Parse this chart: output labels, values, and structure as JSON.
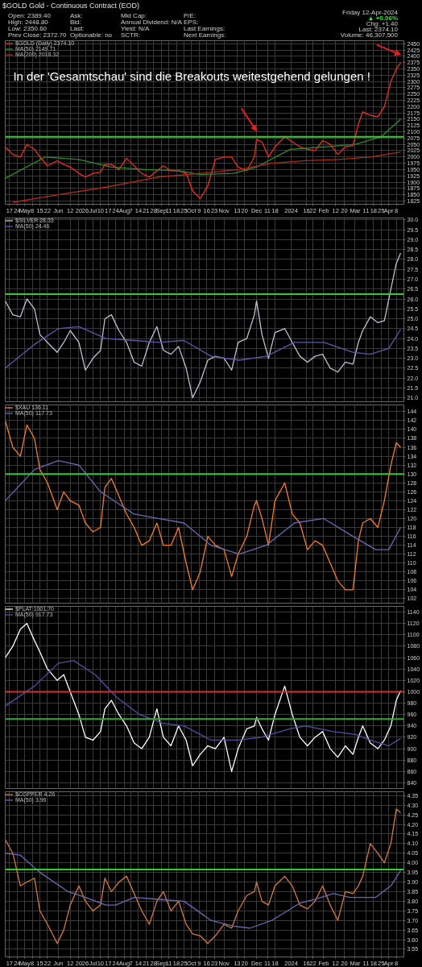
{
  "chart_data": [
    {
      "type": "line",
      "title": "$GOLD Gold - Continuous Contract (EOD)",
      "subtitle": "In der 'Gesamtschau' sind die Breakouts weitestgehend gelungen !",
      "annotations": [
        "Open: 2389.40",
        "High: 2448.80",
        "Low: 2350.60",
        "Prev Close: 2372.70",
        "Ask:",
        "Bid:",
        "Last:",
        "Optionable: no",
        "Mkt Cap:",
        "Annual Dividend: N/A",
        "Yield: N/A",
        "SCTR:",
        "P/E:",
        "EPS:",
        "Last Earnings:",
        "Next Earnings:",
        "Friday 12-Apr-2024",
        "▲ +0.06%",
        "Chg: +1.40",
        "Last: 2374.10",
        "Volume: 46,307,500"
      ],
      "x": [
        "2023-04-13",
        "2023-04-20",
        "2023-04-27",
        "2023-05-03",
        "2023-05-10",
        "2023-05-15",
        "2023-05-22",
        "2023-05-31",
        "2023-06-06",
        "2023-06-12",
        "2023-06-20",
        "2023-06-26",
        "2023-07-03",
        "2023-07-10",
        "2023-07-14",
        "2023-07-20",
        "2023-07-27",
        "2023-08-03",
        "2023-08-10",
        "2023-08-17",
        "2023-08-24",
        "2023-08-31",
        "2023-09-06",
        "2023-09-13",
        "2023-09-20",
        "2023-09-27",
        "2023-10-03",
        "2023-10-10",
        "2023-10-17",
        "2023-10-24",
        "2023-11-01",
        "2023-11-08",
        "2023-11-14",
        "2023-11-22",
        "2023-11-29",
        "2023-12-01",
        "2023-12-06",
        "2023-12-12",
        "2023-12-18",
        "2023-12-27",
        "2024-01-03",
        "2024-01-10",
        "2024-01-17",
        "2024-01-24",
        "2024-01-31",
        "2024-02-07",
        "2024-02-14",
        "2024-02-21",
        "2024-02-28",
        "2024-03-04",
        "2024-03-08",
        "2024-03-15",
        "2024-03-22",
        "2024-03-28",
        "2024-04-03",
        "2024-04-08",
        "2024-04-12"
      ],
      "series": [
        {
          "name": "$GOLD (Daily) 2374.10",
          "color": "#e8321e",
          "values": [
            2040,
            2010,
            2000,
            2050,
            2030,
            2000,
            1965,
            1985,
            1970,
            1960,
            1935,
            1920,
            1935,
            1940,
            1970,
            1970,
            1950,
            1995,
            1965,
            1935,
            1920,
            1945,
            1965,
            1945,
            1945,
            1935,
            1865,
            1835,
            1885,
            1990,
            2000,
            2000,
            1960,
            1945,
            2000,
            2070,
            2060,
            2000,
            2040,
            2080,
            2060,
            2040,
            2030,
            2025,
            2065,
            2050,
            2010,
            2040,
            2045,
            2130,
            2180,
            2165,
            2160,
            2200,
            2300,
            2350,
            2374
          ]
        },
        {
          "name": "MA(50) 2149.71",
          "color": "#2e8b2e",
          "x": [
            "2023-04-13",
            "2023-05-20",
            "2023-06-20",
            "2023-07-20",
            "2023-08-20",
            "2023-09-20",
            "2023-10-10",
            "2023-11-10",
            "2023-12-01",
            "2024-01-01",
            "2024-02-01",
            "2024-03-01",
            "2024-03-25",
            "2024-04-12"
          ],
          "values": [
            1915,
            2000,
            1990,
            1960,
            1950,
            1945,
            1930,
            1935,
            1960,
            2030,
            2040,
            2050,
            2080,
            2150
          ]
        },
        {
          "name": "MA(200) 2018.32",
          "color": "#b02a1a",
          "x": [
            "2023-04-20",
            "2023-06-01",
            "2023-07-15",
            "2023-09-01",
            "2023-10-10",
            "2023-11-15",
            "2023-12-15",
            "2024-01-15",
            "2024-02-15",
            "2024-03-15",
            "2024-04-12"
          ],
          "values": [
            1820,
            1850,
            1880,
            1920,
            1935,
            1950,
            1975,
            1985,
            1990,
            2000,
            2020
          ]
        }
      ],
      "xlim": [
        "2023-04-13",
        "2024-04-15"
      ],
      "xticks": [
        {
          "value": "2023-04-17",
          "label": "17"
        },
        {
          "value": "2023-04-24",
          "label": "24"
        },
        {
          "value": "2023-05-01",
          "label": "May"
        },
        {
          "value": "2023-05-08",
          "label": "8"
        },
        {
          "value": "2023-05-15",
          "label": "15"
        },
        {
          "value": "2023-05-22",
          "label": "22"
        },
        {
          "value": "2023-06-01",
          "label": "Jun"
        },
        {
          "value": "2023-06-12",
          "label": "12"
        },
        {
          "value": "2023-06-20",
          "label": "20"
        },
        {
          "value": "2023-06-26",
          "label": "26"
        },
        {
          "value": "2023-07-03",
          "label": "Jul"
        },
        {
          "value": "2023-07-10",
          "label": "10"
        },
        {
          "value": "2023-07-17",
          "label": "17"
        },
        {
          "value": "2023-07-24",
          "label": "24"
        },
        {
          "value": "2023-08-01",
          "label": "Aug"
        },
        {
          "value": "2023-08-07",
          "label": "7"
        },
        {
          "value": "2023-08-14",
          "label": "14"
        },
        {
          "value": "2023-08-21",
          "label": "21"
        },
        {
          "value": "2023-08-28",
          "label": "28"
        },
        {
          "value": "2023-09-04",
          "label": "Sep"
        },
        {
          "value": "2023-09-11",
          "label": "11"
        },
        {
          "value": "2023-09-18",
          "label": "18"
        },
        {
          "value": "2023-09-25",
          "label": "25"
        },
        {
          "value": "2023-10-02",
          "label": "Oct"
        },
        {
          "value": "2023-10-09",
          "label": "9"
        },
        {
          "value": "2023-10-16",
          "label": "16"
        },
        {
          "value": "2023-10-23",
          "label": "23"
        },
        {
          "value": "2023-11-01",
          "label": "Nov"
        },
        {
          "value": "2023-11-13",
          "label": "13"
        },
        {
          "value": "2023-11-20",
          "label": "20"
        },
        {
          "value": "2023-12-01",
          "label": "Dec"
        },
        {
          "value": "2023-12-11",
          "label": "11"
        },
        {
          "value": "2023-12-18",
          "label": "18"
        },
        {
          "value": "2024-01-02",
          "label": "2024"
        },
        {
          "value": "2024-01-16",
          "label": "16"
        },
        {
          "value": "2024-01-22",
          "label": "22"
        },
        {
          "value": "2024-02-01",
          "label": "Feb"
        },
        {
          "value": "2024-02-12",
          "label": "12"
        },
        {
          "value": "2024-02-20",
          "label": "20"
        },
        {
          "value": "2024-03-01",
          "label": "Mar"
        },
        {
          "value": "2024-03-11",
          "label": "11"
        },
        {
          "value": "2024-03-18",
          "label": "18"
        },
        {
          "value": "2024-03-25",
          "label": "25"
        },
        {
          "value": "2024-04-01",
          "label": "Apr"
        },
        {
          "value": "2024-04-08",
          "label": "8"
        }
      ],
      "ylim": [
        1812,
        2462
      ],
      "yticks": [
        1825,
        1850,
        1875,
        1900,
        1925,
        1950,
        1975,
        2000,
        2025,
        2050,
        2075,
        2100,
        2125,
        2150,
        2175,
        2200,
        2225,
        2250,
        2275,
        2300,
        2325,
        2350,
        2375,
        2400,
        2425,
        2450
      ],
      "ref_lines": [
        {
          "axis": "y",
          "value": 2080,
          "color": "#33cc33"
        }
      ],
      "grid": true,
      "legend": "top left"
    },
    {
      "type": "line",
      "x": [
        "2023-04-13",
        "2023-04-20",
        "2023-04-27",
        "2023-05-03",
        "2023-05-10",
        "2023-05-15",
        "2023-05-22",
        "2023-05-31",
        "2023-06-06",
        "2023-06-12",
        "2023-06-20",
        "2023-06-26",
        "2023-07-03",
        "2023-07-10",
        "2023-07-14",
        "2023-07-20",
        "2023-07-27",
        "2023-08-03",
        "2023-08-10",
        "2023-08-17",
        "2023-08-24",
        "2023-08-31",
        "2023-09-06",
        "2023-09-13",
        "2023-09-20",
        "2023-09-27",
        "2023-10-03",
        "2023-10-10",
        "2023-10-17",
        "2023-10-24",
        "2023-11-01",
        "2023-11-08",
        "2023-11-14",
        "2023-11-22",
        "2023-11-29",
        "2023-12-01",
        "2023-12-06",
        "2023-12-12",
        "2023-12-18",
        "2023-12-27",
        "2024-01-03",
        "2024-01-10",
        "2024-01-17",
        "2024-01-24",
        "2024-01-31",
        "2024-02-07",
        "2024-02-14",
        "2024-02-21",
        "2024-02-28",
        "2024-03-04",
        "2024-03-08",
        "2024-03-15",
        "2024-03-22",
        "2024-03-28",
        "2024-04-03",
        "2024-04-08",
        "2024-04-12"
      ],
      "series": [
        {
          "name": "$SILVER 28.33",
          "color": "#b8c4d0",
          "values": [
            25.9,
            25.2,
            25.1,
            26.0,
            25.5,
            24.2,
            23.8,
            23.3,
            23.8,
            24.4,
            23.8,
            22.4,
            23.0,
            23.4,
            25.0,
            25.2,
            24.4,
            23.8,
            22.8,
            22.6,
            23.8,
            24.6,
            23.4,
            23.2,
            23.6,
            22.5,
            21.0,
            21.8,
            22.9,
            23.1,
            23.0,
            22.4,
            23.8,
            24.0,
            25.2,
            25.9,
            24.2,
            23.0,
            24.3,
            24.5,
            23.8,
            23.1,
            22.8,
            23.1,
            23.2,
            22.5,
            22.3,
            22.8,
            22.7,
            23.8,
            24.4,
            25.1,
            24.8,
            24.9,
            26.5,
            27.8,
            28.33
          ]
        },
        {
          "name": "MA(50) 24.46",
          "color": "#5a5aa8",
          "x": [
            "2023-04-13",
            "2023-05-10",
            "2023-06-01",
            "2023-06-20",
            "2023-07-15",
            "2023-08-10",
            "2023-09-01",
            "2023-09-25",
            "2023-10-20",
            "2023-11-15",
            "2023-12-10",
            "2024-01-05",
            "2024-02-01",
            "2024-02-28",
            "2024-03-15",
            "2024-04-01",
            "2024-04-12"
          ],
          "values": [
            22.5,
            23.7,
            24.5,
            24.6,
            24.0,
            23.9,
            23.8,
            23.9,
            23.1,
            22.9,
            23.1,
            23.8,
            23.8,
            23.3,
            23.2,
            23.5,
            24.46
          ]
        }
      ],
      "xlim": [
        "2023-04-13",
        "2024-04-15"
      ],
      "ylim": [
        20.8,
        30.1
      ],
      "yticks": [
        {
          "value": 21,
          "label": "21.0"
        },
        {
          "value": 21.5,
          "label": "21.5"
        },
        {
          "value": 22,
          "label": "22.0"
        },
        {
          "value": 22.5,
          "label": "22.5"
        },
        {
          "value": 23,
          "label": "23.0"
        },
        {
          "value": 23.5,
          "label": "23.5"
        },
        {
          "value": 24,
          "label": "24.0"
        },
        {
          "value": 24.5,
          "label": "24.5"
        },
        {
          "value": 25,
          "label": "25.0"
        },
        {
          "value": 25.5,
          "label": "25.5"
        },
        {
          "value": 26,
          "label": "26.0"
        },
        {
          "value": 26.5,
          "label": "26.5"
        },
        {
          "value": 27,
          "label": "27.0"
        },
        {
          "value": 27.5,
          "label": "27.5"
        },
        {
          "value": 28,
          "label": "28.0"
        },
        {
          "value": 28.5,
          "label": "28.5"
        },
        {
          "value": 29,
          "label": "29.0"
        },
        {
          "value": 29.5,
          "label": "29.5"
        },
        {
          "value": 30,
          "label": "30.0"
        }
      ],
      "ref_lines": [
        {
          "axis": "y",
          "value": 26.25,
          "color": "#33cc33"
        }
      ],
      "grid": true,
      "legend": "top left",
      "tick_labels": "y"
    },
    {
      "type": "line",
      "x": [
        "2023-04-13",
        "2023-04-20",
        "2023-04-27",
        "2023-05-03",
        "2023-05-10",
        "2023-05-15",
        "2023-05-22",
        "2023-05-31",
        "2023-06-06",
        "2023-06-12",
        "2023-06-20",
        "2023-06-26",
        "2023-07-03",
        "2023-07-10",
        "2023-07-14",
        "2023-07-20",
        "2023-07-27",
        "2023-08-03",
        "2023-08-10",
        "2023-08-17",
        "2023-08-24",
        "2023-08-31",
        "2023-09-06",
        "2023-09-13",
        "2023-09-20",
        "2023-09-27",
        "2023-10-03",
        "2023-10-10",
        "2023-10-17",
        "2023-10-24",
        "2023-11-01",
        "2023-11-08",
        "2023-11-14",
        "2023-11-22",
        "2023-11-29",
        "2023-12-01",
        "2023-12-06",
        "2023-12-12",
        "2023-12-18",
        "2023-12-27",
        "2024-01-03",
        "2024-01-10",
        "2024-01-17",
        "2024-01-24",
        "2024-01-31",
        "2024-02-07",
        "2024-02-14",
        "2024-02-21",
        "2024-02-28",
        "2024-03-04",
        "2024-03-08",
        "2024-03-15",
        "2024-03-22",
        "2024-03-28",
        "2024-04-03",
        "2024-04-08",
        "2024-04-12"
      ],
      "series": [
        {
          "name": "$XAU 136.11",
          "color": "#f07f2a",
          "values": [
            142,
            136,
            134,
            141,
            138,
            131,
            128,
            122,
            126,
            124,
            123,
            119,
            117,
            118,
            127,
            129,
            125,
            121,
            118,
            114,
            115,
            119,
            114,
            114,
            118,
            110,
            104,
            108,
            116,
            114,
            113,
            107,
            112,
            116,
            123,
            124,
            120,
            114,
            124,
            128,
            121,
            119,
            113,
            115,
            114,
            110,
            106,
            104,
            104,
            115,
            119,
            120,
            118,
            124,
            132,
            137,
            136
          ]
        },
        {
          "name": "MA(50) 117.73",
          "color": "#6a6ab0",
          "x": [
            "2023-04-13",
            "2023-05-10",
            "2023-06-01",
            "2023-06-20",
            "2023-07-10",
            "2023-08-10",
            "2023-09-01",
            "2023-09-25",
            "2023-10-20",
            "2023-11-15",
            "2023-12-10",
            "2024-01-05",
            "2024-02-01",
            "2024-02-28",
            "2024-03-20",
            "2024-04-01",
            "2024-04-12"
          ],
          "values": [
            124,
            131,
            133,
            132,
            126,
            121,
            120,
            119,
            114,
            112,
            114,
            119,
            120,
            116,
            113,
            113,
            118
          ]
        }
      ],
      "xlim": [
        "2023-04-13",
        "2024-04-15"
      ],
      "ylim": [
        101,
        145.5
      ],
      "yticks": [
        102,
        104,
        106,
        108,
        110,
        112,
        114,
        116,
        118,
        120,
        122,
        124,
        126,
        128,
        130,
        132,
        134,
        136,
        138,
        140,
        142,
        144
      ],
      "ref_lines": [
        {
          "axis": "y",
          "value": 130,
          "color": "#33cc33"
        }
      ],
      "grid": true,
      "legend": "top left",
      "tick_labels": "y"
    },
    {
      "type": "line",
      "x": [
        "2023-04-13",
        "2023-04-20",
        "2023-04-27",
        "2023-05-03",
        "2023-05-10",
        "2023-05-15",
        "2023-05-22",
        "2023-05-31",
        "2023-06-06",
        "2023-06-12",
        "2023-06-20",
        "2023-06-26",
        "2023-07-03",
        "2023-07-10",
        "2023-07-14",
        "2023-07-20",
        "2023-07-27",
        "2023-08-03",
        "2023-08-10",
        "2023-08-17",
        "2023-08-24",
        "2023-08-31",
        "2023-09-06",
        "2023-09-13",
        "2023-09-20",
        "2023-09-27",
        "2023-10-03",
        "2023-10-10",
        "2023-10-17",
        "2023-10-24",
        "2023-11-01",
        "2023-11-08",
        "2023-11-14",
        "2023-11-22",
        "2023-11-29",
        "2023-12-01",
        "2023-12-06",
        "2023-12-12",
        "2023-12-18",
        "2023-12-27",
        "2024-01-03",
        "2024-01-10",
        "2024-01-17",
        "2024-01-24",
        "2024-01-31",
        "2024-02-07",
        "2024-02-14",
        "2024-02-21",
        "2024-02-28",
        "2024-03-04",
        "2024-03-08",
        "2024-03-15",
        "2024-03-22",
        "2024-03-28",
        "2024-04-03",
        "2024-04-08",
        "2024-04-12"
      ],
      "series": [
        {
          "name": "$PLAT 1001.70",
          "color": "#ffffff",
          "values": [
            1060,
            1080,
            1110,
            1120,
            1090,
            1070,
            1040,
            1020,
            1030,
            1000,
            960,
            920,
            915,
            930,
            970,
            985,
            960,
            940,
            910,
            900,
            920,
            970,
            920,
            905,
            940,
            915,
            870,
            890,
            905,
            900,
            920,
            860,
            900,
            935,
            940,
            955,
            935,
            915,
            960,
            1010,
            960,
            920,
            905,
            920,
            930,
            900,
            885,
            905,
            890,
            920,
            940,
            910,
            900,
            915,
            940,
            985,
            1002
          ]
        },
        {
          "name": "MA(50) 917.73",
          "color": "#5050a0",
          "x": [
            "2023-04-13",
            "2023-05-10",
            "2023-06-01",
            "2023-06-15",
            "2023-07-05",
            "2023-07-25",
            "2023-08-15",
            "2023-09-05",
            "2023-09-25",
            "2023-10-20",
            "2023-11-15",
            "2023-12-05",
            "2024-01-01",
            "2024-01-15",
            "2024-02-10",
            "2024-03-01",
            "2024-03-15",
            "2024-04-01",
            "2024-04-12"
          ],
          "values": [
            975,
            1010,
            1050,
            1055,
            1030,
            990,
            960,
            945,
            940,
            915,
            915,
            920,
            935,
            940,
            930,
            925,
            915,
            905,
            918
          ]
        }
      ],
      "xlim": [
        "2023-04-13",
        "2024-04-15"
      ],
      "ylim": [
        830,
        1150
      ],
      "yticks": [
        840,
        860,
        880,
        900,
        920,
        940,
        960,
        980,
        1000,
        1020,
        1040,
        1060,
        1080,
        1100,
        1120,
        1140
      ],
      "ref_lines": [
        {
          "axis": "y",
          "value": 1000,
          "color": "#cc3333"
        },
        {
          "axis": "y",
          "value": 952,
          "color": "#33aa33"
        }
      ],
      "grid": true,
      "legend": "top left",
      "tick_labels": "y"
    },
    {
      "type": "line",
      "x": [
        "2023-04-13",
        "2023-04-20",
        "2023-04-27",
        "2023-05-03",
        "2023-05-10",
        "2023-05-15",
        "2023-05-22",
        "2023-05-31",
        "2023-06-06",
        "2023-06-12",
        "2023-06-20",
        "2023-06-26",
        "2023-07-03",
        "2023-07-10",
        "2023-07-14",
        "2023-07-20",
        "2023-07-27",
        "2023-08-03",
        "2023-08-10",
        "2023-08-17",
        "2023-08-24",
        "2023-08-31",
        "2023-09-06",
        "2023-09-13",
        "2023-09-20",
        "2023-09-27",
        "2023-10-03",
        "2023-10-10",
        "2023-10-17",
        "2023-10-24",
        "2023-11-01",
        "2023-11-08",
        "2023-11-14",
        "2023-11-22",
        "2023-11-29",
        "2023-12-01",
        "2023-12-06",
        "2023-12-12",
        "2023-12-18",
        "2023-12-27",
        "2024-01-03",
        "2024-01-10",
        "2024-01-17",
        "2024-01-24",
        "2024-01-31",
        "2024-02-07",
        "2024-02-14",
        "2024-02-21",
        "2024-02-28",
        "2024-03-04",
        "2024-03-08",
        "2024-03-15",
        "2024-03-22",
        "2024-03-28",
        "2024-04-03",
        "2024-04-08",
        "2024-04-12"
      ],
      "series": [
        {
          "name": "$COPPER 4.26",
          "color": "#d07a40",
          "values": [
            4.12,
            4.05,
            3.88,
            3.9,
            3.92,
            3.75,
            3.68,
            3.58,
            3.65,
            3.78,
            3.88,
            3.8,
            3.75,
            3.78,
            3.92,
            3.85,
            3.9,
            3.93,
            3.84,
            3.75,
            3.68,
            3.8,
            3.85,
            3.75,
            3.8,
            3.68,
            3.63,
            3.62,
            3.58,
            3.62,
            3.68,
            3.66,
            3.75,
            3.83,
            3.85,
            3.9,
            3.8,
            3.78,
            3.88,
            3.93,
            3.88,
            3.78,
            3.76,
            3.8,
            3.88,
            3.78,
            3.7,
            3.85,
            3.84,
            3.88,
            3.93,
            4.1,
            4.05,
            4.0,
            4.1,
            4.28,
            4.26
          ]
        },
        {
          "name": "MA(50) 3.96",
          "color": "#6a6ab0",
          "x": [
            "2023-04-13",
            "2023-04-27",
            "2023-05-15",
            "2023-06-10",
            "2023-06-26",
            "2023-07-15",
            "2023-07-24",
            "2023-08-10",
            "2023-09-01",
            "2023-09-25",
            "2023-10-20",
            "2023-11-10",
            "2023-11-25",
            "2023-12-15",
            "2024-01-10",
            "2024-01-24",
            "2024-02-10",
            "2024-02-25",
            "2024-03-20",
            "2024-04-03",
            "2024-04-12"
          ],
          "values": [
            4.05,
            4.04,
            3.95,
            3.85,
            3.82,
            3.78,
            3.78,
            3.82,
            3.81,
            3.8,
            3.7,
            3.67,
            3.66,
            3.7,
            3.79,
            3.81,
            3.84,
            3.82,
            3.82,
            3.88,
            3.96
          ]
        }
      ],
      "xlim": [
        "2023-04-13",
        "2024-04-15"
      ],
      "xticks": [
        {
          "value": "2023-04-17",
          "label": "17"
        },
        {
          "value": "2023-04-24",
          "label": "24"
        },
        {
          "value": "2023-05-01",
          "label": "May"
        },
        {
          "value": "2023-05-08",
          "label": "8"
        },
        {
          "value": "2023-05-15",
          "label": "15"
        },
        {
          "value": "2023-05-22",
          "label": "22"
        },
        {
          "value": "2023-06-01",
          "label": "Jun"
        },
        {
          "value": "2023-06-12",
          "label": "12"
        },
        {
          "value": "2023-06-20",
          "label": "20"
        },
        {
          "value": "2023-06-26",
          "label": "26"
        },
        {
          "value": "2023-07-03",
          "label": "Jul"
        },
        {
          "value": "2023-07-10",
          "label": "10"
        },
        {
          "value": "2023-07-17",
          "label": "17"
        },
        {
          "value": "2023-07-24",
          "label": "24"
        },
        {
          "value": "2023-08-01",
          "label": "Aug"
        },
        {
          "value": "2023-08-07",
          "label": "7"
        },
        {
          "value": "2023-08-14",
          "label": "14"
        },
        {
          "value": "2023-08-21",
          "label": "21"
        },
        {
          "value": "2023-08-28",
          "label": "28"
        },
        {
          "value": "2023-09-04",
          "label": "Sep"
        },
        {
          "value": "2023-09-11",
          "label": "11"
        },
        {
          "value": "2023-09-18",
          "label": "18"
        },
        {
          "value": "2023-09-25",
          "label": "25"
        },
        {
          "value": "2023-10-02",
          "label": "Oct"
        },
        {
          "value": "2023-10-09",
          "label": "9"
        },
        {
          "value": "2023-10-16",
          "label": "16"
        },
        {
          "value": "2023-10-23",
          "label": "23"
        },
        {
          "value": "2023-11-01",
          "label": "Nov"
        },
        {
          "value": "2023-11-13",
          "label": "13"
        },
        {
          "value": "2023-11-20",
          "label": "20"
        },
        {
          "value": "2023-12-01",
          "label": "Dec"
        },
        {
          "value": "2023-12-11",
          "label": "11"
        },
        {
          "value": "2023-12-18",
          "label": "18"
        },
        {
          "value": "2024-01-02",
          "label": "2024"
        },
        {
          "value": "2024-01-16",
          "label": "16"
        },
        {
          "value": "2024-01-22",
          "label": "22"
        },
        {
          "value": "2024-02-01",
          "label": "Feb"
        },
        {
          "value": "2024-02-12",
          "label": "12"
        },
        {
          "value": "2024-02-20",
          "label": "20"
        },
        {
          "value": "2024-03-01",
          "label": "Mar"
        },
        {
          "value": "2024-03-11",
          "label": "11"
        },
        {
          "value": "2024-03-18",
          "label": "18"
        },
        {
          "value": "2024-03-25",
          "label": "25"
        },
        {
          "value": "2024-04-01",
          "label": "Apr"
        },
        {
          "value": "2024-04-08",
          "label": "8"
        }
      ],
      "ylim": [
        3.51,
        4.37
      ],
      "yticks": [
        {
          "value": 3.55,
          "label": "3.55"
        },
        {
          "value": 3.6,
          "label": "3.60"
        },
        {
          "value": 3.65,
          "label": "3.65"
        },
        {
          "value": 3.7,
          "label": "3.70"
        },
        {
          "value": 3.75,
          "label": "3.75"
        },
        {
          "value": 3.8,
          "label": "3.80"
        },
        {
          "value": 3.85,
          "label": "3.85"
        },
        {
          "value": 3.9,
          "label": "3.90"
        },
        {
          "value": 3.95,
          "label": "3.95"
        },
        {
          "value": 4.0,
          "label": "4.00"
        },
        {
          "value": 4.05,
          "label": "4.05"
        },
        {
          "value": 4.1,
          "label": "4.10"
        },
        {
          "value": 4.15,
          "label": "4.15"
        },
        {
          "value": 4.2,
          "label": "4.20"
        },
        {
          "value": 4.25,
          "label": "4.25"
        },
        {
          "value": 4.3,
          "label": "4.30"
        },
        {
          "value": 4.35,
          "label": "4.35"
        }
      ],
      "ref_lines": [
        {
          "axis": "y",
          "value": 3.965,
          "color": "#33cc33"
        }
      ],
      "grid": true,
      "legend": "top left"
    }
  ]
}
